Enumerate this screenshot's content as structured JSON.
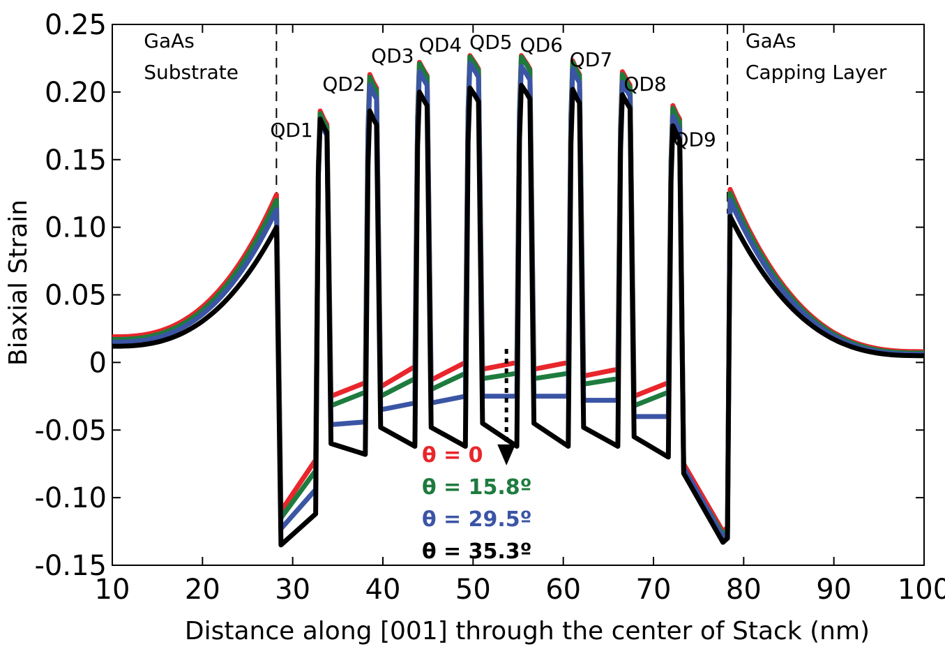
{
  "chart_data": {
    "type": "line",
    "title": "",
    "xlabel": "Distance along [001] through the center of Stack (nm)",
    "ylabel": "Biaxial Strain",
    "xlim": [
      10,
      100
    ],
    "ylim": [
      -0.15,
      0.25
    ],
    "xticks": [
      10,
      20,
      30,
      40,
      50,
      60,
      70,
      80,
      90,
      100
    ],
    "xtick_labels": [
      "10",
      "20",
      "30",
      "40",
      "50",
      "60",
      "70",
      "80",
      "90",
      "100"
    ],
    "yticks": [
      -0.15,
      -0.1,
      -0.05,
      0,
      0.05,
      0.1,
      0.15,
      0.2,
      0.25
    ],
    "ytick_labels": [
      "-0.15",
      "-0.10",
      "-0.05",
      "0",
      "0.05",
      "0.10",
      "0.15",
      "0.20",
      "0.25"
    ],
    "grid": false,
    "boundaries": [
      28.2,
      78.2
    ],
    "region_labels": [
      {
        "lines": [
          "GaAs",
          "Substrate"
        ],
        "x": 13.5,
        "y": 0.233
      },
      {
        "lines": [
          "GaAs",
          "Capping Layer"
        ],
        "x": 80.2,
        "y": 0.233
      }
    ],
    "quantum_dots": [
      "QD1",
      "QD2",
      "QD3",
      "QD4",
      "QD5",
      "QD6",
      "QD7",
      "QD8",
      "QD9"
    ],
    "qd_label_anchor": [
      [
        27.5,
        0.167
      ],
      [
        33.3,
        0.201
      ],
      [
        38.7,
        0.222
      ],
      [
        44.0,
        0.23
      ],
      [
        49.6,
        0.232
      ],
      [
        55.2,
        0.23
      ],
      [
        60.7,
        0.219
      ],
      [
        66.7,
        0.201
      ],
      [
        72.2,
        0.16
      ]
    ],
    "qd_positions": [
      {
        "start": 32.7,
        "end": 33.8
      },
      {
        "start": 38.2,
        "end": 39.3
      },
      {
        "start": 43.7,
        "end": 44.9
      },
      {
        "start": 49.3,
        "end": 50.6
      },
      {
        "start": 55.0,
        "end": 56.3
      },
      {
        "start": 60.7,
        "end": 61.8
      },
      {
        "start": 66.2,
        "end": 67.4
      },
      {
        "start": 71.8,
        "end": 72.9
      },
      {
        "start": 77.5,
        "end": 78.2
      }
    ],
    "series": [
      {
        "name": "θ = 0",
        "color": "#e8262b",
        "substrate": {
          "edge": 0.124,
          "far": 0.019
        },
        "cap": {
          "edge": 0.128,
          "far": 0.008
        },
        "qd_peaks": [
          0.186,
          0.213,
          0.222,
          0.227,
          0.227,
          0.223,
          0.215,
          0.19
        ],
        "spacer_start": [
          -0.11,
          -0.025,
          -0.018,
          -0.013,
          -0.005,
          -0.005,
          -0.01,
          -0.025
        ],
        "spacer_end": [
          -0.072,
          -0.015,
          -0.003,
          0.0,
          0.0,
          0.0,
          -0.005,
          -0.015
        ],
        "cap_dip": [
          -0.075,
          -0.125
        ]
      },
      {
        "name": "θ = 15.8º",
        "color": "#1e7b3e",
        "substrate": {
          "edge": 0.12,
          "far": 0.017
        },
        "cap": {
          "edge": 0.125,
          "far": 0.007
        },
        "qd_peaks": [
          0.184,
          0.211,
          0.221,
          0.226,
          0.226,
          0.222,
          0.213,
          0.188
        ],
        "spacer_start": [
          -0.115,
          -0.032,
          -0.025,
          -0.02,
          -0.012,
          -0.012,
          -0.016,
          -0.032
        ],
        "spacer_end": [
          -0.08,
          -0.022,
          -0.012,
          -0.008,
          -0.008,
          -0.008,
          -0.012,
          -0.022
        ],
        "cap_dip": [
          -0.08,
          -0.127
        ]
      },
      {
        "name": "θ = 29.5º",
        "color": "#3b55a5",
        "substrate": {
          "edge": 0.113,
          "far": 0.015
        },
        "cap": {
          "edge": 0.12,
          "far": 0.006
        },
        "qd_peaks": [
          0.178,
          0.205,
          0.215,
          0.221,
          0.219,
          0.217,
          0.207,
          0.182
        ],
        "spacer_start": [
          -0.123,
          -0.046,
          -0.035,
          -0.03,
          -0.025,
          -0.025,
          -0.028,
          -0.04
        ],
        "spacer_end": [
          -0.094,
          -0.044,
          -0.03,
          -0.025,
          -0.025,
          -0.025,
          -0.028,
          -0.04
        ],
        "cap_dip": [
          -0.078,
          -0.129
        ]
      },
      {
        "name": "θ = 35.3º",
        "color": "#000000",
        "substrate": {
          "edge": 0.1,
          "far": 0.012
        },
        "cap": {
          "edge": 0.108,
          "far": 0.005
        },
        "qd_peaks": [
          0.18,
          0.186,
          0.2,
          0.203,
          0.205,
          0.202,
          0.198,
          0.175
        ],
        "spacer_start": [
          -0.135,
          -0.06,
          -0.048,
          -0.048,
          -0.045,
          -0.045,
          -0.048,
          -0.055
        ],
        "spacer_end": [
          -0.112,
          -0.068,
          -0.062,
          -0.062,
          -0.062,
          -0.062,
          -0.062,
          -0.07
        ],
        "cap_dip": [
          -0.082,
          -0.133
        ]
      }
    ],
    "arrow": {
      "x": 53.7,
      "y_from": 0.01,
      "y_to": -0.072,
      "style": "dotted"
    }
  }
}
